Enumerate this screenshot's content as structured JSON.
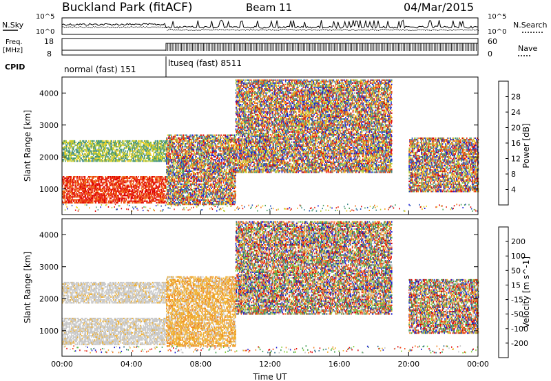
{
  "header": {
    "station": "Buckland Park (fitACF)",
    "beam": "Beam 11",
    "date": "04/Mar/2015"
  },
  "summary": {
    "nsky_label": "N.Sky",
    "nsky_ticks": [
      "10^5",
      "10^0"
    ],
    "nsearch_label": "N.Search",
    "nsearch_ticks": [
      "10^5",
      "10^0"
    ],
    "freq_label": "Freq.",
    "freq_unit": "[MHz]",
    "freq_ticks": [
      "18",
      "8"
    ],
    "nave_label": "Nave",
    "nave_ticks": [
      "60",
      "0"
    ],
    "cpid_label": "CPID",
    "cpid_segments": [
      {
        "label": "normal (fast) 151",
        "start_hour": 0,
        "end_hour": 6
      },
      {
        "label": "ltuseq (fast) 8511",
        "start_hour": 6,
        "end_hour": 24
      }
    ]
  },
  "chart_data": [
    {
      "type": "heatmap",
      "title": "",
      "xlabel": "",
      "ylabel": "Slant Range [km]",
      "xlim": [
        0,
        24
      ],
      "ylim": [
        200,
        4500
      ],
      "y_ticks": [
        "1000",
        "2000",
        "3000",
        "4000"
      ],
      "colorbar": {
        "label": "Power [dB]",
        "ticks": [
          "4",
          "8",
          "12",
          "16",
          "20",
          "24",
          "28"
        ],
        "colors": [
          "#1a1ad8",
          "#2855b8",
          "#3d8a8a",
          "#4ea060",
          "#b8cc30",
          "#f0d020",
          "#f0a020",
          "#f06a10",
          "#e82a10",
          "#e00000"
        ]
      },
      "bands": [
        {
          "start_hour": 0,
          "end_hour": 6,
          "range_lo": 550,
          "range_hi": 1400,
          "level": "high"
        },
        {
          "start_hour": 0,
          "end_hour": 6,
          "range_lo": 1850,
          "range_hi": 2500,
          "level": "medium"
        },
        {
          "start_hour": 6,
          "end_hour": 10,
          "range_lo": 500,
          "range_hi": 2700,
          "level": "mixed"
        },
        {
          "start_hour": 10,
          "end_hour": 19,
          "range_lo": 1500,
          "range_hi": 4400,
          "level": "mixed"
        },
        {
          "start_hour": 20,
          "end_hour": 24,
          "range_lo": 900,
          "range_hi": 2600,
          "level": "mixed"
        }
      ]
    },
    {
      "type": "heatmap",
      "title": "",
      "xlabel": "Time UT",
      "ylabel": "Slant Range [km]",
      "xlim": [
        0,
        24
      ],
      "ylim": [
        200,
        4500
      ],
      "y_ticks": [
        "1000",
        "2000",
        "3000",
        "4000"
      ],
      "x_ticks": [
        "00:00",
        "04:00",
        "08:00",
        "12:00",
        "16:00",
        "20:00",
        "00:00"
      ],
      "colorbar": {
        "label": "Velocity [m s^-1]",
        "ticks": [
          "200",
          "100",
          "50",
          "15",
          "-15",
          "-50",
          "-100",
          "-200"
        ],
        "colors": [
          "#1a1ad0",
          "#2a6a8a",
          "#3a9a4a",
          "#80cc30",
          "#c8c8c8",
          "#f0b030",
          "#f08020",
          "#f04010",
          "#e00000"
        ]
      },
      "bands": [
        {
          "start_hour": 0,
          "end_hour": 6,
          "range_lo": 550,
          "range_hi": 1400,
          "level": "gray"
        },
        {
          "start_hour": 0,
          "end_hour": 6,
          "range_lo": 1850,
          "range_hi": 2500,
          "level": "gray"
        },
        {
          "start_hour": 6,
          "end_hour": 10,
          "range_lo": 500,
          "range_hi": 2700,
          "level": "negative"
        },
        {
          "start_hour": 10,
          "end_hour": 19,
          "range_lo": 1500,
          "range_hi": 4400,
          "level": "mixed"
        },
        {
          "start_hour": 20,
          "end_hour": 24,
          "range_lo": 900,
          "range_hi": 2600,
          "level": "mixed"
        }
      ]
    }
  ]
}
